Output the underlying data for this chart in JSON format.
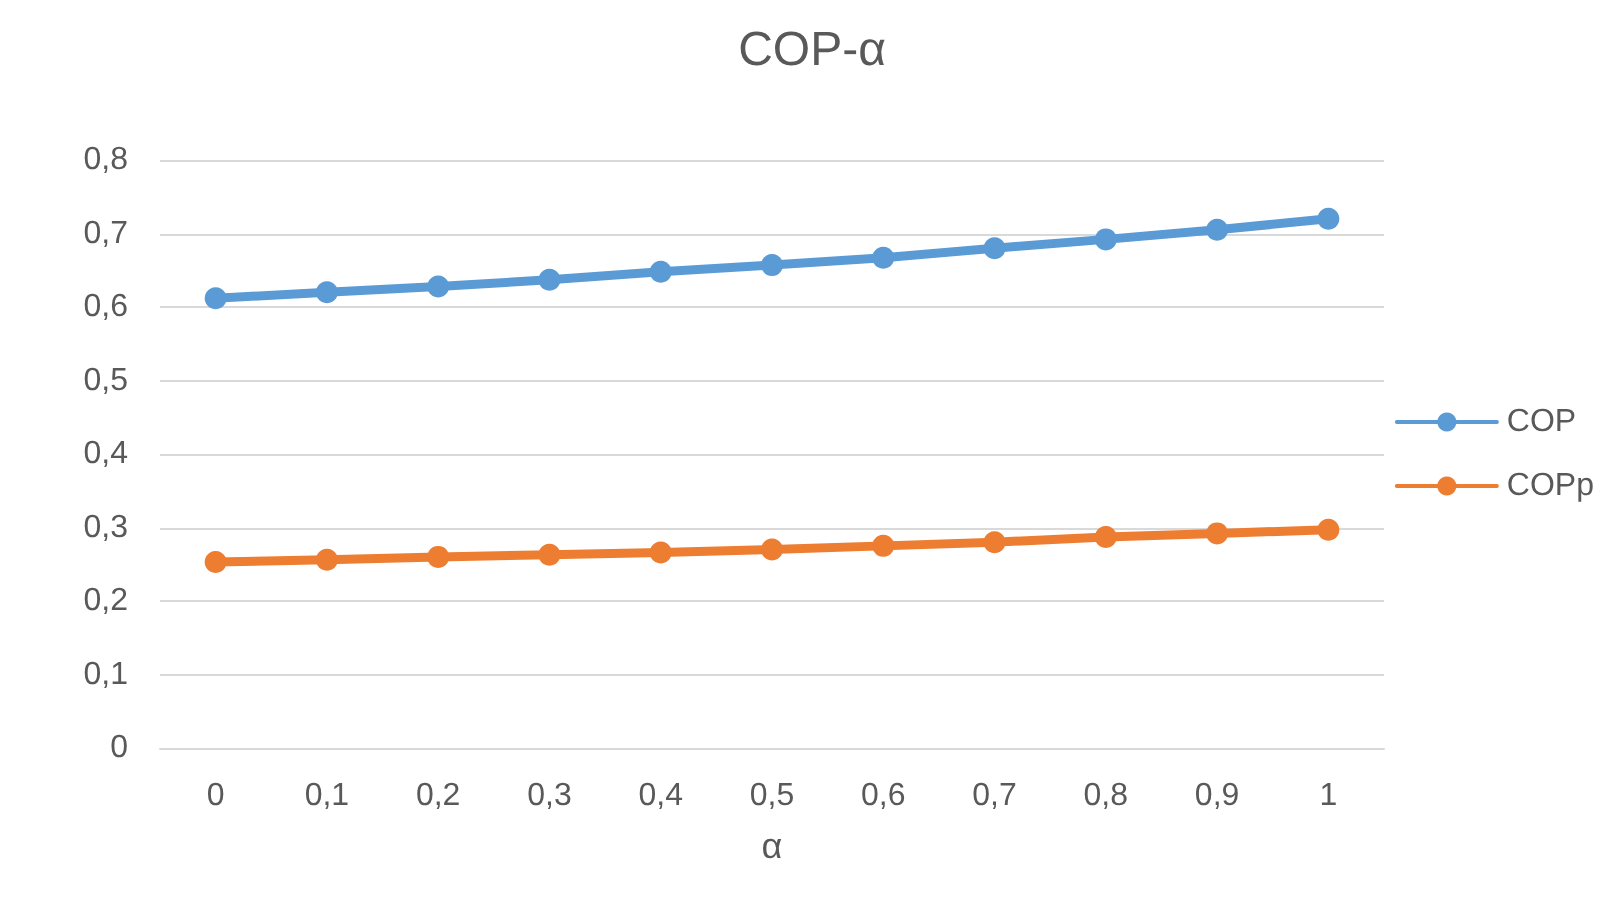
{
  "chart_data": {
    "type": "line",
    "title": "COP-α",
    "xlabel": "α",
    "categories": [
      "0",
      "0,1",
      "0,2",
      "0,3",
      "0,4",
      "0,5",
      "0,6",
      "0,7",
      "0,8",
      "0,9",
      "1"
    ],
    "series": [
      {
        "name": "COP",
        "color": "#5b9bd5",
        "values": [
          0.612,
          0.62,
          0.628,
          0.637,
          0.648,
          0.657,
          0.667,
          0.68,
          0.692,
          0.705,
          0.72
        ]
      },
      {
        "name": "COPp",
        "color": "#ed7d31",
        "values": [
          0.253,
          0.256,
          0.26,
          0.263,
          0.266,
          0.27,
          0.275,
          0.28,
          0.287,
          0.292,
          0.297
        ]
      }
    ],
    "ylim": [
      0,
      0.8
    ],
    "yticks": [
      {
        "value": 0,
        "label": "0"
      },
      {
        "value": 0.1,
        "label": "0,1"
      },
      {
        "value": 0.2,
        "label": "0,2"
      },
      {
        "value": 0.3,
        "label": "0,3"
      },
      {
        "value": 0.4,
        "label": "0,4"
      },
      {
        "value": 0.5,
        "label": "0,5"
      },
      {
        "value": 0.6,
        "label": "0,6"
      },
      {
        "value": 0.7,
        "label": "0,7"
      },
      {
        "value": 0.8,
        "label": "0,8"
      }
    ],
    "grid": "y",
    "legend": "right",
    "marker": "circle",
    "line_style": "solid"
  }
}
